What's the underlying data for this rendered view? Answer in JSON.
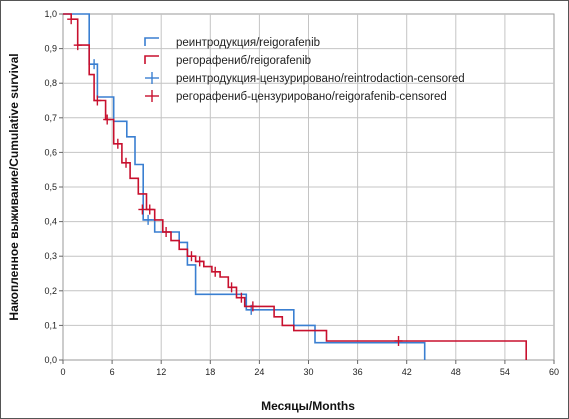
{
  "chart_data": {
    "type": "line",
    "xlabel": "Месяцы/Months",
    "ylabel": "Накопленное выживание/Cumulative survival",
    "xlim": [
      0,
      60
    ],
    "ylim": [
      0,
      1.0
    ],
    "xticks": [
      "0",
      "6",
      "12",
      "18",
      "24",
      "30",
      "36",
      "42",
      "48",
      "54",
      "60"
    ],
    "yticks": [
      "0,0",
      "0,1",
      "0,2",
      "0,3",
      "0,4",
      "0,5",
      "0,6",
      "0,7",
      "0,8",
      "0,9",
      "1,0"
    ],
    "grid": true,
    "legend_position": "top-right",
    "legend": [
      {
        "label": "реинтродукция/reigorafenib",
        "kind": "step",
        "series": "blue"
      },
      {
        "label": "регорафениб/reigorafenib",
        "kind": "step",
        "series": "red"
      },
      {
        "label": "реинтродукция-цензурировано/reintrodaction-censored",
        "kind": "censor",
        "series": "blue"
      },
      {
        "label": "регорафениб-цензурировано/reigorafenib-censored",
        "kind": "censor",
        "series": "red"
      }
    ],
    "series": [
      {
        "color": "#3a7fd1",
        "steps": [
          [
            0,
            1.0
          ],
          [
            3.2,
            0.855
          ],
          [
            4.2,
            0.76
          ],
          [
            6.2,
            0.69
          ],
          [
            7.8,
            0.645
          ],
          [
            8.8,
            0.565
          ],
          [
            9.8,
            0.405
          ],
          [
            11.2,
            0.37
          ],
          [
            14.2,
            0.34
          ],
          [
            15.2,
            0.275
          ],
          [
            16.2,
            0.19
          ],
          [
            22.4,
            0.145
          ],
          [
            28.2,
            0.1
          ],
          [
            30.8,
            0.05
          ],
          [
            44.2,
            0.0
          ]
        ],
        "censored": [
          [
            3.8,
            0.855
          ],
          [
            10.4,
            0.405
          ],
          [
            23.0,
            0.145
          ]
        ]
      },
      {
        "color": "#c8102e",
        "steps": [
          [
            0,
            1.0
          ],
          [
            1.0,
            0.985
          ],
          [
            1.8,
            0.91
          ],
          [
            3.2,
            0.825
          ],
          [
            3.8,
            0.75
          ],
          [
            5.2,
            0.695
          ],
          [
            6.2,
            0.625
          ],
          [
            7.2,
            0.57
          ],
          [
            8.2,
            0.525
          ],
          [
            9.2,
            0.48
          ],
          [
            10.2,
            0.435
          ],
          [
            11.2,
            0.405
          ],
          [
            12.2,
            0.37
          ],
          [
            13.2,
            0.345
          ],
          [
            14.2,
            0.32
          ],
          [
            15.2,
            0.3
          ],
          [
            16.2,
            0.285
          ],
          [
            17.2,
            0.27
          ],
          [
            18.2,
            0.255
          ],
          [
            19.2,
            0.24
          ],
          [
            20.2,
            0.21
          ],
          [
            21.2,
            0.18
          ],
          [
            22.2,
            0.155
          ],
          [
            25.8,
            0.125
          ],
          [
            26.8,
            0.1
          ],
          [
            28.2,
            0.085
          ],
          [
            32.2,
            0.055
          ],
          [
            56.6,
            0.0
          ]
        ],
        "censored": [
          [
            1.0,
            0.985
          ],
          [
            1.8,
            0.91
          ],
          [
            4.2,
            0.75
          ],
          [
            5.4,
            0.695
          ],
          [
            6.7,
            0.625
          ],
          [
            7.7,
            0.57
          ],
          [
            9.7,
            0.435
          ],
          [
            10.6,
            0.435
          ],
          [
            12.6,
            0.37
          ],
          [
            15.7,
            0.3
          ],
          [
            16.7,
            0.285
          ],
          [
            18.6,
            0.255
          ],
          [
            20.6,
            0.21
          ],
          [
            21.8,
            0.18
          ],
          [
            23.2,
            0.155
          ],
          [
            41.0,
            0.055
          ]
        ]
      }
    ]
  }
}
